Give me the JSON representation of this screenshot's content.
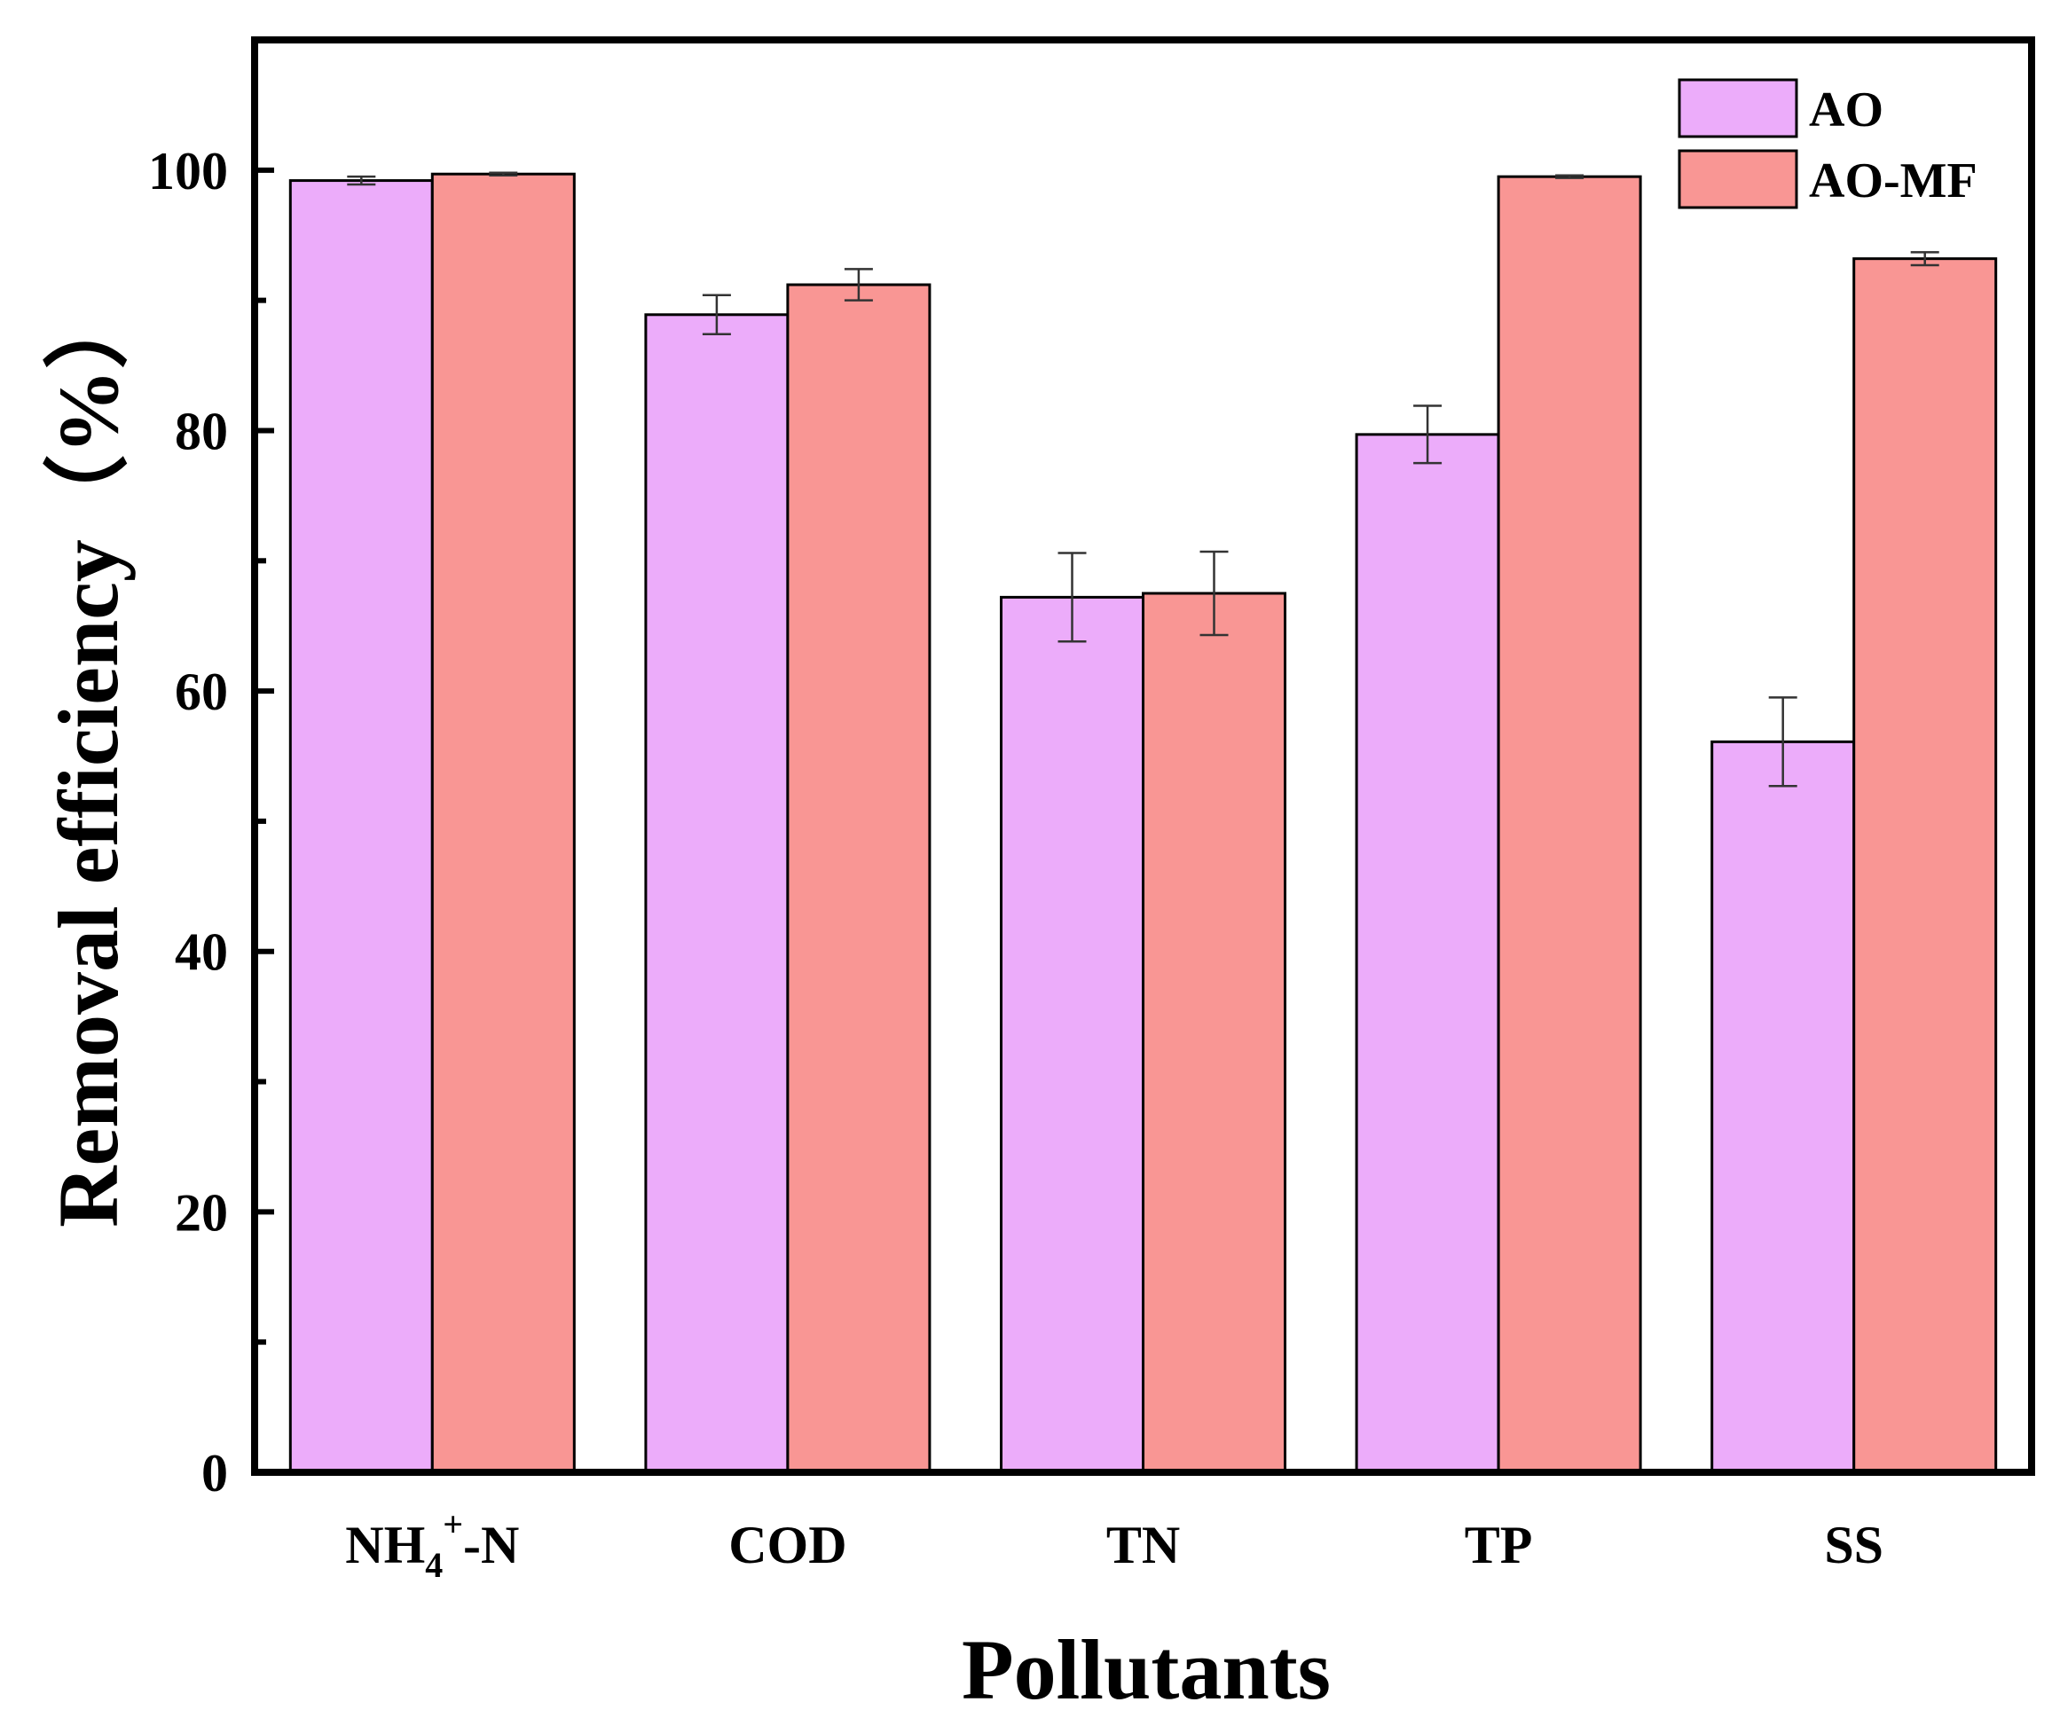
{
  "chart_data": {
    "type": "bar",
    "title": "",
    "xlabel": "Pollutants",
    "ylabel": "Removal efficiency（%）",
    "ylim": [
      0,
      110
    ],
    "yticks": [
      0,
      20,
      40,
      60,
      80,
      100
    ],
    "categories": [
      {
        "main": "NH",
        "sub": "4",
        "sup": "+",
        "tail": "-N"
      },
      {
        "main": "COD"
      },
      {
        "main": "TN"
      },
      {
        "main": "TP"
      },
      {
        "main": "SS"
      }
    ],
    "series": [
      {
        "name": "AO",
        "color": "#ecacfa",
        "values": [
          99.2,
          88.9,
          67.2,
          79.7,
          56.1
        ],
        "errors": [
          0.3,
          1.5,
          3.4,
          2.2,
          3.4
        ]
      },
      {
        "name": "AO-MF",
        "color": "#f99694",
        "values": [
          99.7,
          91.2,
          67.5,
          99.5,
          93.2
        ],
        "errors": [
          0.1,
          1.2,
          3.2,
          0.1,
          0.5
        ]
      }
    ],
    "legend": "top-right",
    "grid": false
  }
}
